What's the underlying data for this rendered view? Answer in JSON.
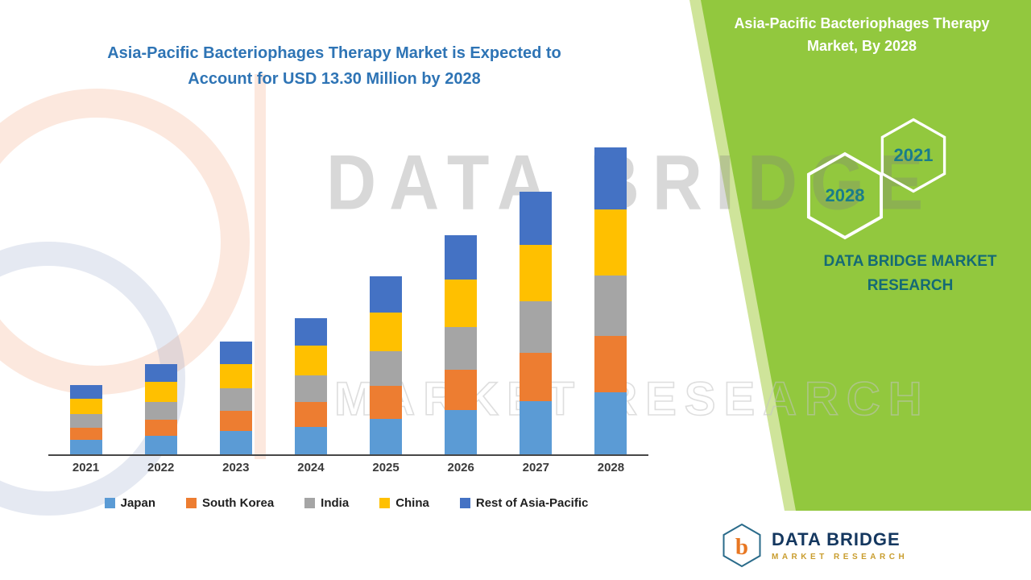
{
  "header": {
    "left_title": "Asia-Pacific Bacteriophages Therapy Market is Expected to Account for USD 13.30 Million by 2028",
    "right_title": "Asia-Pacific Bacteriophages Therapy Market, By 2028"
  },
  "side_panel": {
    "hexagon_labels": [
      "2028",
      "2021"
    ],
    "brand_line1": "DATA BRIDGE MARKET",
    "brand_line2": "RESEARCH"
  },
  "watermark": {
    "title": "DATA BRIDGE",
    "subtitle": "MARKET RESEARCH"
  },
  "footer_logo": {
    "monogram": "b",
    "name": "DATA BRIDGE",
    "tagline": "MARKET RESEARCH"
  },
  "colors": {
    "accent_green": "#92c83e",
    "title_blue": "#2e74b5",
    "brand_teal": "#156a75",
    "logo_navy": "#14375f",
    "logo_gold": "#c99d2e"
  },
  "chart_data": {
    "type": "bar",
    "stacked": true,
    "title": "Asia-Pacific Bacteriophages Therapy Market is Expected to Account for USD 13.30 Million by 2028",
    "unit": "USD Million",
    "categories": [
      "2021",
      "2022",
      "2023",
      "2024",
      "2025",
      "2026",
      "2027",
      "2028"
    ],
    "series": [
      {
        "name": "Japan",
        "color": "#5B9BD5",
        "values": [
          0.62,
          0.8,
          1.0,
          1.2,
          1.55,
          1.92,
          2.3,
          2.7
        ]
      },
      {
        "name": "South Korea",
        "color": "#ED7D31",
        "values": [
          0.55,
          0.72,
          0.9,
          1.08,
          1.42,
          1.75,
          2.1,
          2.45
        ]
      },
      {
        "name": "India",
        "color": "#A5A5A5",
        "values": [
          0.58,
          0.76,
          0.95,
          1.15,
          1.5,
          1.85,
          2.22,
          2.6
        ]
      },
      {
        "name": "China",
        "color": "#FFC000",
        "values": [
          0.65,
          0.85,
          1.05,
          1.27,
          1.68,
          2.05,
          2.45,
          2.85
        ]
      },
      {
        "name": "Rest of Asia-Pacific",
        "color": "#4472C4",
        "values": [
          0.6,
          0.77,
          1.0,
          1.2,
          1.55,
          1.93,
          2.33,
          2.7
        ]
      }
    ],
    "totals": [
      3.0,
      3.9,
      4.9,
      5.9,
      7.7,
      9.5,
      11.4,
      13.3
    ],
    "ylim": [
      0,
      15.5
    ],
    "grid": false,
    "legend_position": "bottom",
    "xlabel": "",
    "ylabel": ""
  }
}
